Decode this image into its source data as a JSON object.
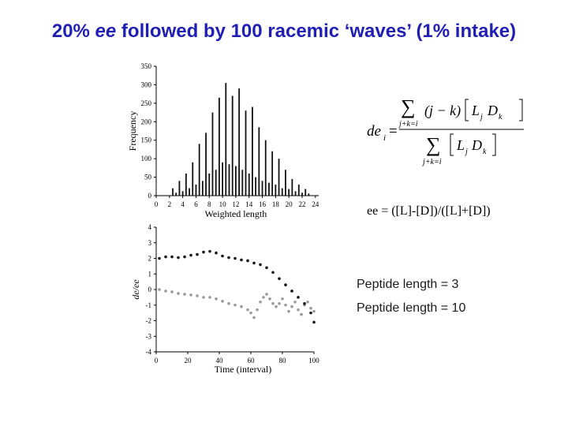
{
  "title": {
    "pre": "20% ",
    "em": "ee",
    "post": " followed by 100 racemic ‘waves’ (1% intake)"
  },
  "equation": {
    "lhs": "de",
    "lhs_sub": "i",
    "sum_sub": "j+k=i",
    "num_term": "(j − k)",
    "term": "L_j D_k",
    "ee_definition": "ee = ([L]-[D])/([L]+[D])"
  },
  "legend": {
    "items": [
      {
        "label": "Peptide length =  3",
        "color": "#9a9a9a"
      },
      {
        "label": "Peptide length = 10",
        "color": "#111111"
      }
    ]
  },
  "chart_data": [
    {
      "type": "bar",
      "xlabel": "Weighted length",
      "ylabel": "Frequency",
      "xlim": [
        0,
        24.5
      ],
      "ylim": [
        0,
        350
      ],
      "xticks": [
        0,
        2,
        4,
        6,
        8,
        10,
        12,
        14,
        16,
        18,
        20,
        22,
        24
      ],
      "yticks": [
        0,
        50,
        100,
        150,
        200,
        250,
        300,
        350
      ],
      "x": [
        2.5,
        3.0,
        3.5,
        4.0,
        4.5,
        5.0,
        5.5,
        6.0,
        6.5,
        7.0,
        7.5,
        8.0,
        8.5,
        9.0,
        9.5,
        10.0,
        10.5,
        11.0,
        11.5,
        12.0,
        12.5,
        13.0,
        13.5,
        14.0,
        14.5,
        15.0,
        15.5,
        16.0,
        16.5,
        17.0,
        17.5,
        18.0,
        18.5,
        19.0,
        19.5,
        20.0,
        20.5,
        21.0,
        21.5,
        22.0,
        22.5,
        23.0
      ],
      "values": [
        20,
        8,
        40,
        12,
        60,
        20,
        90,
        30,
        140,
        40,
        170,
        60,
        225,
        70,
        265,
        90,
        305,
        85,
        270,
        80,
        290,
        70,
        230,
        60,
        240,
        50,
        185,
        40,
        150,
        35,
        120,
        30,
        100,
        20,
        70,
        18,
        45,
        12,
        30,
        8,
        18,
        6
      ]
    },
    {
      "type": "scatter",
      "xlabel": "Time (interval)",
      "ylabel": "de/ee",
      "xlim": [
        0,
        100
      ],
      "ylim": [
        -4,
        4
      ],
      "xticks": [
        0,
        20,
        40,
        60,
        80,
        100
      ],
      "yticks": [
        -4,
        -3,
        -2,
        -1,
        0,
        1,
        2,
        3,
        4
      ],
      "series": [
        {
          "name": "Peptide length =  3",
          "color": "#9a9a9a",
          "x": [
            2,
            6,
            10,
            14,
            18,
            22,
            26,
            30,
            34,
            38,
            42,
            46,
            50,
            54,
            58,
            60,
            62,
            64,
            66,
            68,
            70,
            72,
            74,
            76,
            78,
            80,
            82,
            84,
            86,
            88,
            90,
            92,
            94,
            96,
            98,
            100
          ],
          "y": [
            0.0,
            -0.1,
            -0.15,
            -0.25,
            -0.3,
            -0.35,
            -0.4,
            -0.5,
            -0.5,
            -0.6,
            -0.75,
            -0.9,
            -1.0,
            -1.1,
            -1.3,
            -1.5,
            -1.8,
            -1.3,
            -0.8,
            -0.5,
            -0.3,
            -0.6,
            -0.9,
            -1.1,
            -0.9,
            -0.6,
            -1.0,
            -1.4,
            -1.1,
            -0.8,
            -1.3,
            -1.6,
            -1.0,
            -0.8,
            -1.2,
            -1.4
          ]
        },
        {
          "name": "Peptide length = 10",
          "color": "#111111",
          "x": [
            2,
            6,
            10,
            14,
            18,
            22,
            26,
            30,
            34,
            38,
            42,
            46,
            50,
            54,
            58,
            62,
            66,
            70,
            74,
            78,
            82,
            86,
            90,
            94,
            98,
            100
          ],
          "y": [
            2.0,
            2.1,
            2.1,
            2.05,
            2.1,
            2.2,
            2.25,
            2.4,
            2.45,
            2.35,
            2.15,
            2.05,
            2.0,
            1.9,
            1.85,
            1.7,
            1.6,
            1.4,
            1.1,
            0.7,
            0.3,
            -0.1,
            -0.5,
            -0.9,
            -1.5,
            -2.1
          ]
        }
      ]
    }
  ]
}
